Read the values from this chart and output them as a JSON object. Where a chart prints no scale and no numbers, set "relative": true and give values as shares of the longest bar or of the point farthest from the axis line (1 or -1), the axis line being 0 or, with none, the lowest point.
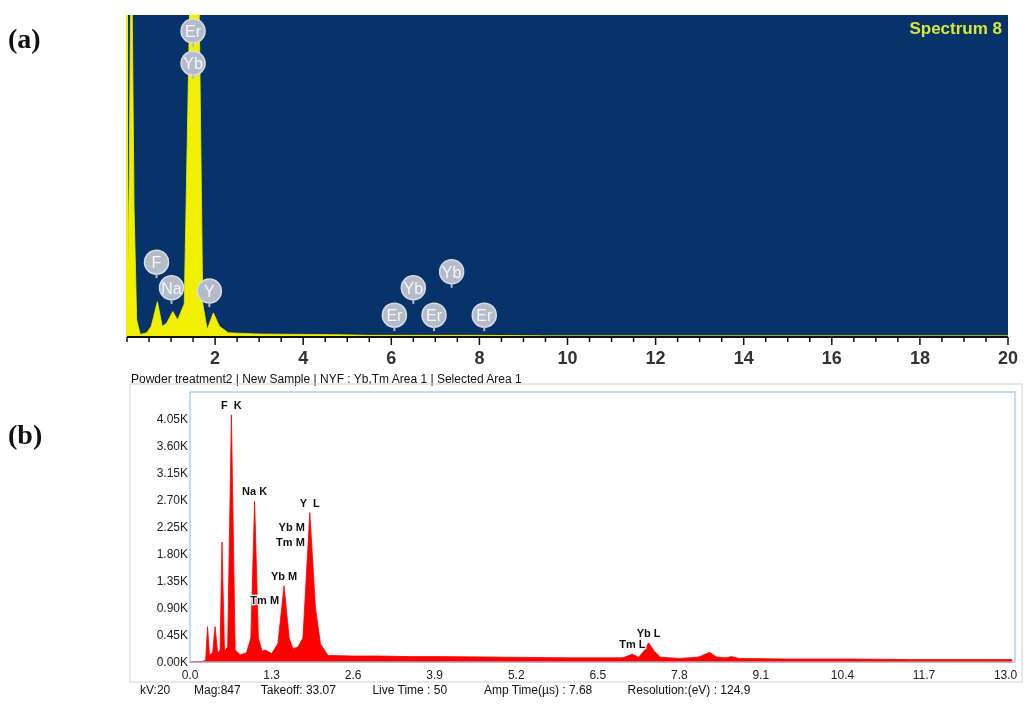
{
  "chart_data": [
    {
      "type": "area",
      "title": "Spectrum 8",
      "relative": true,
      "xlim": [
        0,
        20
      ],
      "xticks": [
        {
          "value": 0,
          "label": null
        },
        {
          "value": 0.5,
          "label": null
        },
        {
          "value": 1,
          "label": null
        },
        {
          "value": 1.5,
          "label": null
        },
        2,
        {
          "value": 2.5,
          "label": null
        },
        {
          "value": 3,
          "label": null
        },
        {
          "value": 3.5,
          "label": null
        },
        4,
        {
          "value": 4.5,
          "label": null
        },
        {
          "value": 5,
          "label": null
        },
        {
          "value": 5.5,
          "label": null
        },
        6,
        {
          "value": 6.5,
          "label": null
        },
        {
          "value": 7,
          "label": null
        },
        {
          "value": 7.5,
          "label": null
        },
        8,
        {
          "value": 8.5,
          "label": null
        },
        {
          "value": 9,
          "label": null
        },
        {
          "value": 9.5,
          "label": null
        },
        10,
        {
          "value": 10.5,
          "label": null
        },
        {
          "value": 11,
          "label": null
        },
        {
          "value": 11.5,
          "label": null
        },
        12,
        {
          "value": 12.5,
          "label": null
        },
        {
          "value": 13,
          "label": null
        },
        {
          "value": 13.5,
          "label": null
        },
        14,
        {
          "value": 14.5,
          "label": null
        },
        {
          "value": 15,
          "label": null
        },
        {
          "value": 15.5,
          "label": null
        },
        16,
        {
          "value": 16.5,
          "label": null
        },
        {
          "value": 17,
          "label": null
        },
        {
          "value": 17.5,
          "label": null
        },
        18,
        {
          "value": 18.5,
          "label": null
        },
        {
          "value": 19,
          "label": null
        },
        {
          "value": 19.5,
          "label": null
        },
        20
      ],
      "x": [
        0,
        0.05,
        0.08,
        0.12,
        0.16,
        0.22,
        0.3,
        0.45,
        0.55,
        0.69,
        0.8,
        0.9,
        1.04,
        1.15,
        1.3,
        1.42,
        1.64,
        1.72,
        1.82,
        1.96,
        2.1,
        2.3,
        3,
        4,
        4.8,
        5.5,
        6.5,
        8,
        9,
        9.5,
        20
      ],
      "series": [
        {
          "color": "#f0f000",
          "values": [
            0,
            0.5,
            1,
            1,
            0.4,
            0.05,
            0.005,
            0.01,
            0.03,
            0.107,
            0.03,
            0.04,
            0.076,
            0.05,
            0.1,
            1,
            1,
            0.1,
            0.02,
            0.072,
            0.03,
            0.01,
            0.006,
            0.005,
            0.004,
            0.002,
            0.002,
            0.002,
            0.001,
            0,
            0
          ]
        }
      ],
      "annotations": [
        "(a)",
        "Powder treatment2 | New Sample | NYF : Yb,Tm Area 1 | Selected Area 1",
        {
          "text": "Er",
          "x": 1.5,
          "y": 0.95
        },
        {
          "text": "Yb",
          "x": 1.5,
          "y": 0.85
        },
        {
          "text": "F",
          "x": 0.67,
          "y": 0.23
        },
        {
          "text": "Na",
          "x": 1.01,
          "y": 0.15
        },
        {
          "text": "Y",
          "x": 1.87,
          "y": 0.14
        },
        {
          "text": "Er",
          "x": 6.07,
          "y": 0.065
        },
        {
          "text": "Yb",
          "x": 6.5,
          "y": 0.15
        },
        {
          "text": "Er",
          "x": 6.97,
          "y": 0.065
        },
        {
          "text": "Yb",
          "x": 7.37,
          "y": 0.2
        },
        {
          "text": "Er",
          "x": 8.11,
          "y": 0.065
        }
      ]
    },
    {
      "type": "area",
      "xlim": [
        0,
        13.15
      ],
      "ylim": [
        0,
        4500
      ],
      "xticks": [
        {
          "value": 0,
          "label": "0.0"
        },
        1.3,
        2.6,
        3.9,
        5.2,
        6.5,
        7.8,
        9.1,
        10.4,
        11.7,
        {
          "value": 13,
          "label": "13.0"
        }
      ],
      "yticks": [
        {
          "value": 0,
          "label": "0.00K"
        },
        {
          "value": 450,
          "label": "0.45K"
        },
        {
          "value": 900,
          "label": "0.90K"
        },
        {
          "value": 1350,
          "label": "1.35K"
        },
        {
          "value": 1800,
          "label": "1.80K"
        },
        {
          "value": 2250,
          "label": "2.25K"
        },
        {
          "value": 2700,
          "label": "2.70K"
        },
        {
          "value": 3150,
          "label": "3.15K"
        },
        {
          "value": 3600,
          "label": "3.60K"
        },
        {
          "value": 4050,
          "label": "4.05K"
        }
      ],
      "x": [
        0,
        0.2,
        0.25,
        0.28,
        0.31,
        0.36,
        0.4,
        0.44,
        0.48,
        0.51,
        0.55,
        0.6,
        0.66,
        0.72,
        0.8,
        0.9,
        0.97,
        1.03,
        1.09,
        1.15,
        1.2,
        1.3,
        1.4,
        1.5,
        1.58,
        1.64,
        1.72,
        1.8,
        1.91,
        2,
        2.08,
        2.2,
        2.6,
        3,
        3.5,
        4,
        5,
        6,
        6.5,
        6.9,
        7.05,
        7.15,
        7.25,
        7.31,
        7.4,
        7.5,
        7.8,
        8.1,
        8.28,
        8.4,
        8.55,
        8.63,
        8.75,
        9.5,
        10.5,
        11.5,
        12.5,
        13.1
      ],
      "series": [
        {
          "color": "#ff0000",
          "values": [
            0,
            10,
            30,
            590,
            120,
            150,
            590,
            150,
            200,
            2000,
            180,
            250,
            4120,
            200,
            120,
            150,
            400,
            2680,
            400,
            180,
            200,
            140,
            300,
            1270,
            400,
            220,
            250,
            400,
            2490,
            900,
            300,
            110,
            100,
            100,
            90,
            90,
            80,
            70,
            70,
            70,
            130,
            80,
            200,
            320,
            180,
            80,
            60,
            80,
            160,
            80,
            70,
            90,
            60,
            50,
            50,
            40,
            40,
            40
          ]
        }
      ],
      "annotations": [
        "(b)",
        "kV:20",
        "Mag:847",
        "Takeoff: 33.07",
        "Live Time : 50",
        "Amp Time(µs) : 7.68",
        "Resolution:(eV) : 124.9",
        {
          "text": "F  K",
          "x": 0.66,
          "y": 4120
        },
        {
          "text": "Na K",
          "x": 1.03,
          "y": 2680
        },
        {
          "text": "Y  L",
          "x": 1.91,
          "y": 2490
        },
        {
          "text": "Yb M",
          "x": 1.91,
          "y": 2490
        },
        {
          "text": "Tm M",
          "x": 1.91,
          "y": 2490
        },
        {
          "text": "Yb M",
          "x": 1.5,
          "y": 1270
        },
        {
          "text": "Tm M",
          "x": 1.5,
          "y": 1270
        },
        {
          "text": "Yb L",
          "x": 7.31,
          "y": 320
        },
        {
          "text": "Tm L",
          "x": 7.05,
          "y": 130
        }
      ]
    }
  ]
}
